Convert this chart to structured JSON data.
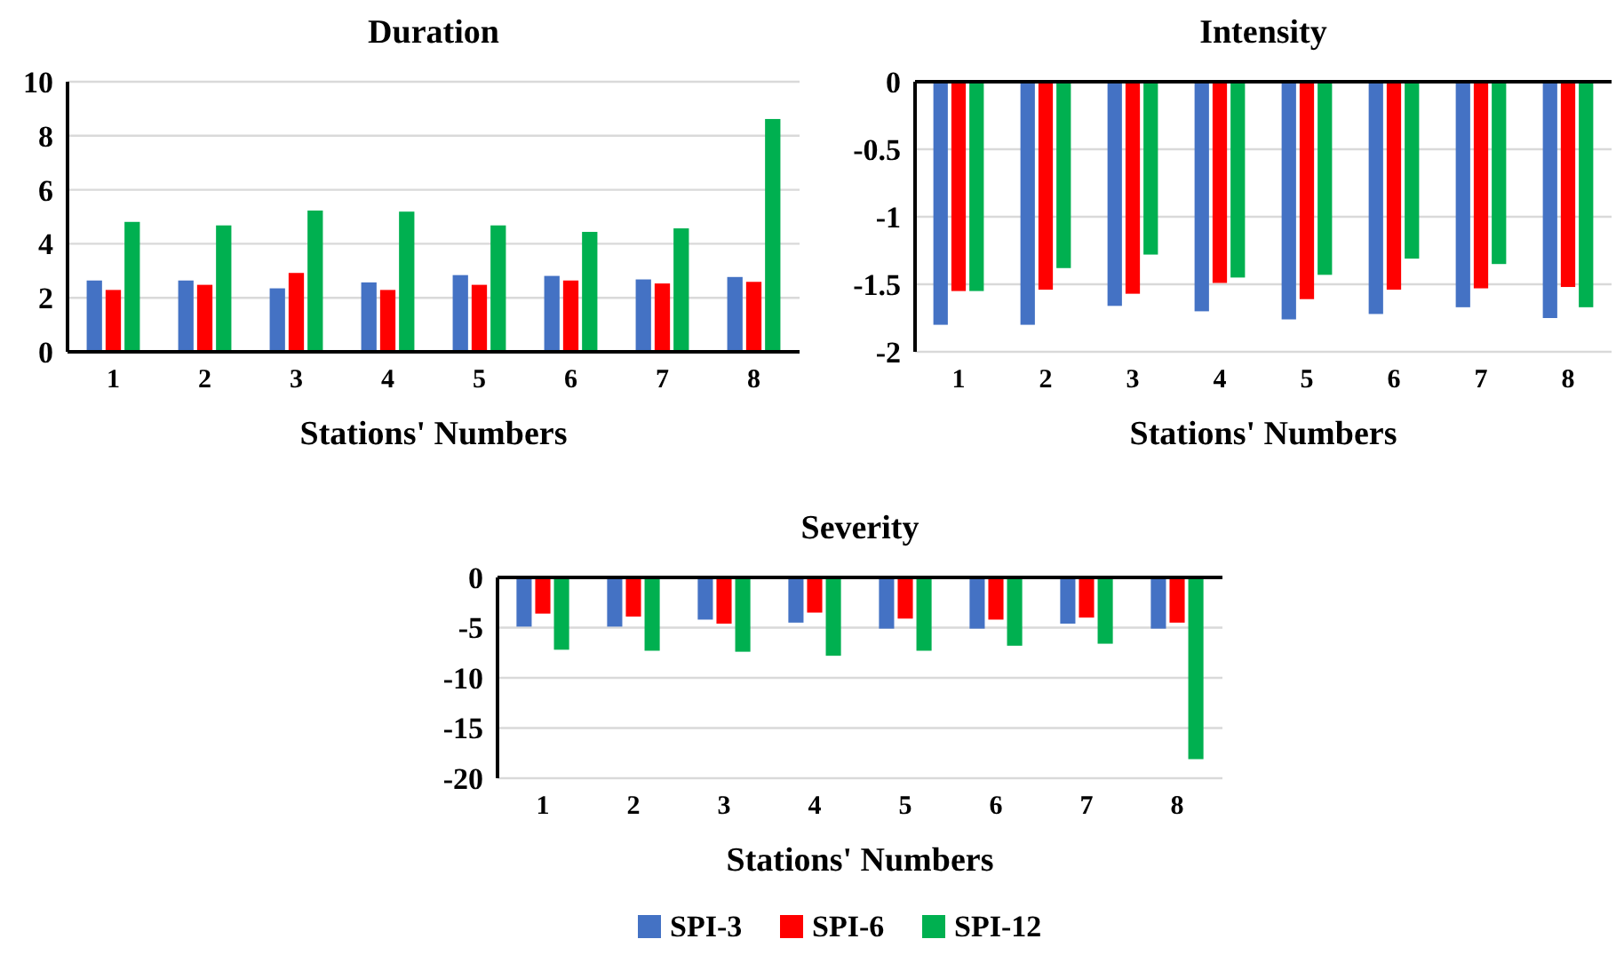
{
  "chart_data": [
    {
      "type": "bar",
      "title": "Duration",
      "xlabel": "Stations' Numbers",
      "categories": [
        "1",
        "2",
        "3",
        "4",
        "5",
        "6",
        "7",
        "8"
      ],
      "series": [
        {
          "color": "#4472c4",
          "values": [
            2.64,
            2.64,
            2.35,
            2.57,
            2.84,
            2.81,
            2.68,
            2.77
          ]
        },
        {
          "color": "#ff0000",
          "values": [
            2.29,
            2.48,
            2.92,
            2.29,
            2.48,
            2.64,
            2.53,
            2.59
          ]
        },
        {
          "color": "#00b050",
          "values": [
            4.81,
            4.68,
            5.23,
            5.19,
            4.68,
            4.44,
            4.57,
            8.62
          ]
        }
      ],
      "ylim": [
        0,
        10
      ],
      "yticks": [
        0,
        2,
        4,
        6,
        8,
        10
      ],
      "grid": "y"
    },
    {
      "type": "bar",
      "title": "Intensity",
      "xlabel": "Stations' Numbers",
      "categories": [
        "1",
        "2",
        "3",
        "4",
        "5",
        "6",
        "7",
        "8"
      ],
      "series": [
        {
          "color": "#4472c4",
          "values": [
            -1.8,
            -1.8,
            -1.66,
            -1.7,
            -1.76,
            -1.72,
            -1.67,
            -1.75
          ]
        },
        {
          "color": "#ff0000",
          "values": [
            -1.55,
            -1.54,
            -1.57,
            -1.49,
            -1.61,
            -1.54,
            -1.53,
            -1.52
          ]
        },
        {
          "color": "#00b050",
          "values": [
            -1.55,
            -1.38,
            -1.28,
            -1.45,
            -1.43,
            -1.31,
            -1.35,
            -1.67
          ]
        }
      ],
      "ylim": [
        -2,
        0
      ],
      "yticks": [
        -2,
        -1.5,
        -1,
        -0.5,
        0
      ],
      "grid": "y"
    },
    {
      "type": "bar",
      "title": "Severity",
      "xlabel": "Stations' Numbers",
      "categories": [
        "1",
        "2",
        "3",
        "4",
        "5",
        "6",
        "7",
        "8"
      ],
      "series": [
        {
          "name": "SPI-3",
          "color": "#4472c4",
          "values": [
            -4.9,
            -4.9,
            -4.2,
            -4.5,
            -5.1,
            -5.1,
            -4.6,
            -5.1
          ]
        },
        {
          "name": "SPI-6",
          "color": "#ff0000",
          "values": [
            -3.6,
            -3.9,
            -4.6,
            -3.5,
            -4.1,
            -4.2,
            -4.0,
            -4.5
          ]
        },
        {
          "name": "SPI-12",
          "color": "#00b050",
          "values": [
            -7.2,
            -7.3,
            -7.4,
            -7.8,
            -7.3,
            -6.8,
            -6.6,
            -18.1
          ]
        }
      ],
      "ylim": [
        -20,
        0
      ],
      "yticks": [
        -20,
        -15,
        -10,
        -5,
        0
      ],
      "grid": "y",
      "legend": "bottom"
    }
  ]
}
